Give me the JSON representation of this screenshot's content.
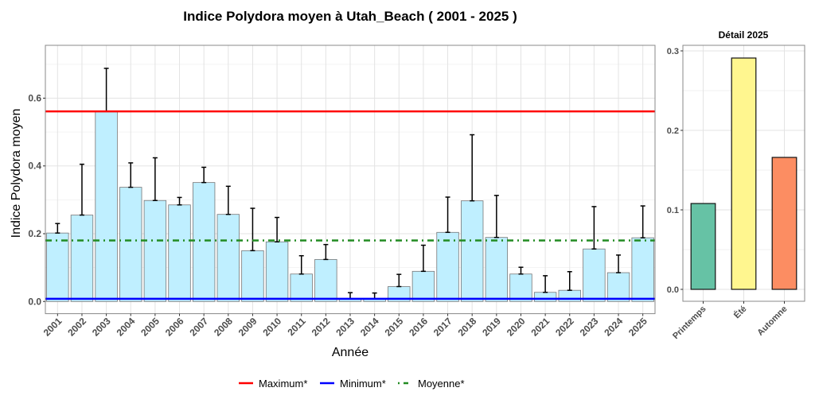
{
  "title": "Indice Polydora moyen à Utah_Beach ( 2001 - 2025 )",
  "chart_data": [
    {
      "type": "bar",
      "xlabel": "Année",
      "ylabel": "Indice Polydora moyen",
      "ylim": [
        -0.036,
        0.756
      ],
      "yticks": [
        0.0,
        0.2,
        0.4,
        0.6
      ],
      "ytick_labels": [
        "0.0",
        "0.2",
        "0.4",
        "0.6"
      ],
      "grid": true,
      "categories": [
        "2001",
        "2002",
        "2003",
        "2004",
        "2005",
        "2006",
        "2007",
        "2008",
        "2009",
        "2010",
        "2011",
        "2012",
        "2013",
        "2014",
        "2015",
        "2016",
        "2017",
        "2018",
        "2019",
        "2020",
        "2021",
        "2022",
        "2023",
        "2024",
        "2025"
      ],
      "values": [
        0.202,
        0.255,
        0.561,
        0.337,
        0.298,
        0.285,
        0.351,
        0.257,
        0.15,
        0.176,
        0.081,
        0.124,
        0.008,
        0.008,
        0.044,
        0.089,
        0.204,
        0.297,
        0.189,
        0.081,
        0.027,
        0.033,
        0.155,
        0.085,
        0.188
      ],
      "error_upper": [
        0.23,
        0.405,
        0.688,
        0.409,
        0.424,
        0.307,
        0.396,
        0.34,
        0.275,
        0.248,
        0.135,
        0.168,
        0.026,
        0.025,
        0.08,
        0.166,
        0.308,
        0.492,
        0.313,
        0.101,
        0.076,
        0.088,
        0.28,
        0.137,
        0.282
      ],
      "bar_color": "#BFEFFF",
      "reference_lines": [
        {
          "name": "Maximum*",
          "value": 0.561,
          "color": "#FF0000",
          "style": "solid"
        },
        {
          "name": "Minimum*",
          "value": 0.008,
          "color": "#0000FF",
          "style": "solid"
        },
        {
          "name": "Moyenne*",
          "value": 0.18,
          "color": "#228B22",
          "style": "dotdash"
        }
      ],
      "legend_position": "bottom"
    },
    {
      "type": "bar",
      "title": "Détail 2025",
      "ylim": [
        -0.015,
        0.307
      ],
      "yticks": [
        0.0,
        0.1,
        0.2,
        0.3
      ],
      "ytick_labels": [
        "0.0",
        "0.1",
        "0.2",
        "0.3"
      ],
      "grid": true,
      "categories": [
        "Printemps",
        "Été",
        "Automne"
      ],
      "values": [
        0.108,
        0.291,
        0.166
      ],
      "colors": [
        "#66C2A5",
        "#FFF68F",
        "#FC8D62"
      ]
    }
  ]
}
